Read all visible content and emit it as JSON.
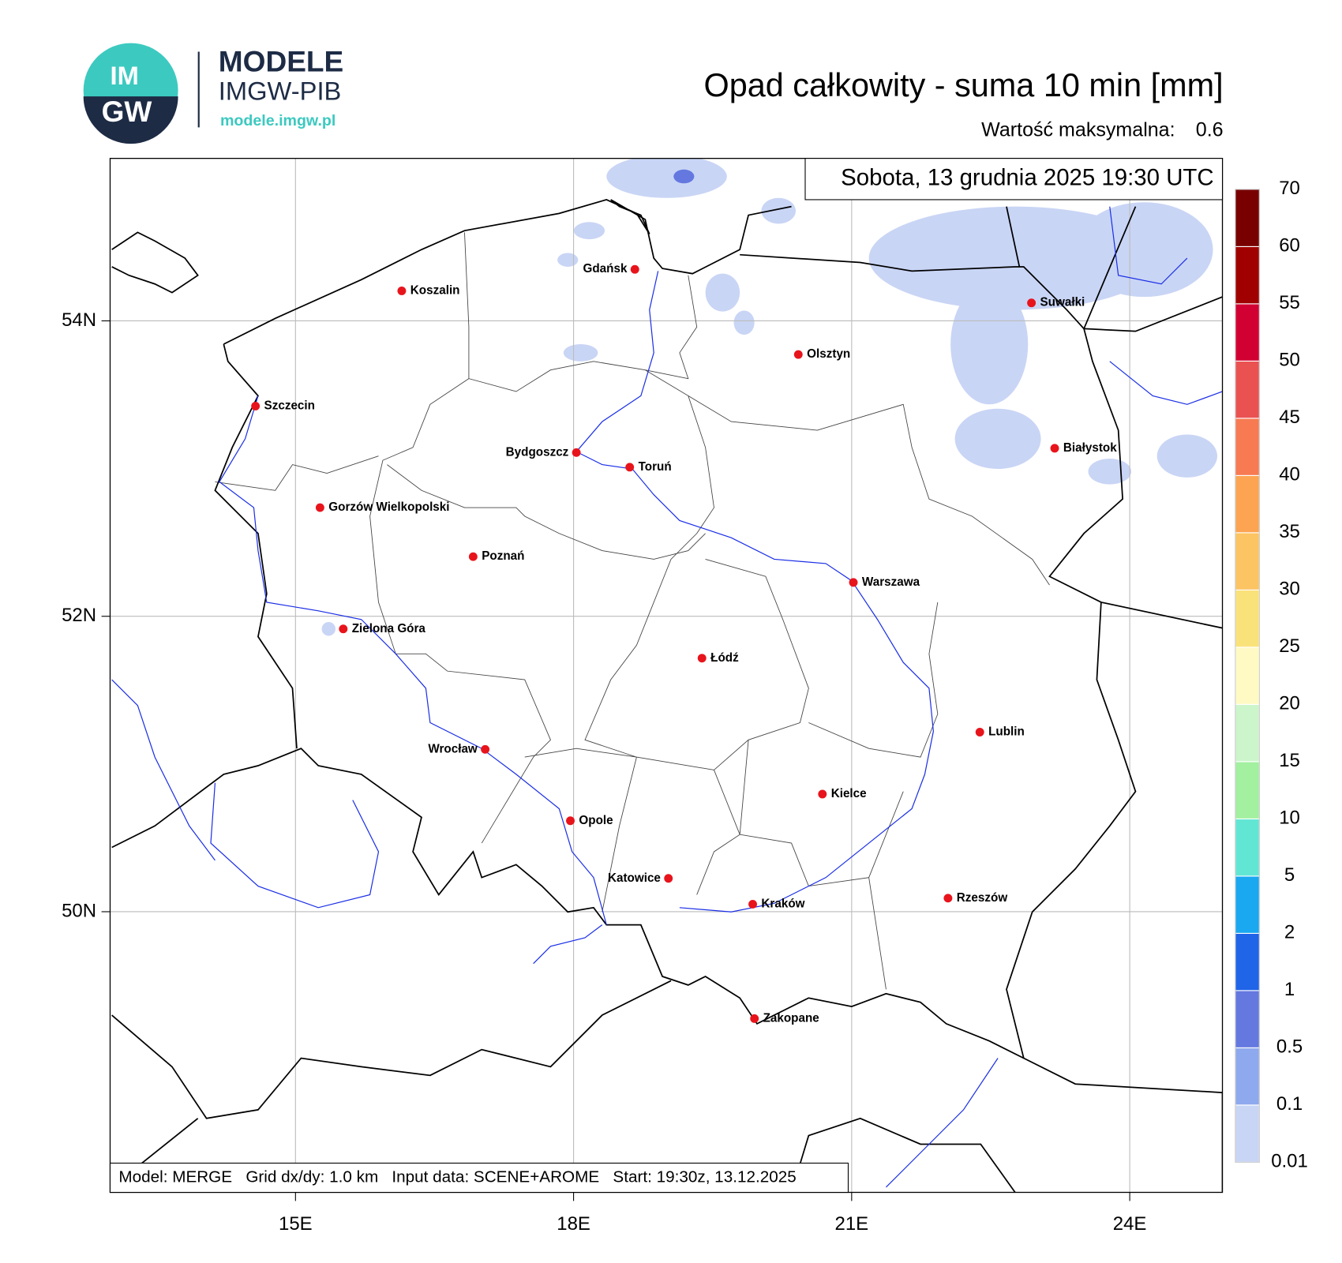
{
  "header": {
    "logo_top": "IM",
    "logo_bottom": "GW",
    "brand": "MODELE",
    "brand_sub": "IMGW-PIB",
    "url": "modele.imgw.pl",
    "title": "Opad całkowity - suma 10 min [mm]",
    "max_label": "Wartość maksymalna:",
    "max_value": 0.6
  },
  "map": {
    "date": "Sobota, 13 grudnia 2025 19:30 UTC",
    "footer": "Model: MERGE   Grid dx/dy: 1.0 km   Input data: SCENE+AROME   Start: 19:30z, 13.12.2025",
    "lonlim": [
      13,
      25
    ],
    "latlim": [
      48.1,
      55.1
    ],
    "xticks": [
      {
        "value": 15,
        "label": "15E"
      },
      {
        "value": 18,
        "label": "18E"
      },
      {
        "value": 21,
        "label": "21E"
      },
      {
        "value": 24,
        "label": "24E"
      }
    ],
    "yticks": [
      {
        "value": 50,
        "label": "50N"
      },
      {
        "value": 52,
        "label": "52N"
      },
      {
        "value": 54,
        "label": "54N"
      }
    ],
    "grid": true,
    "cities": [
      "Gdańsk",
      "Koszalin",
      "Suwałki",
      "Olsztyn",
      "Szczecin",
      "Białystok",
      "Bydgoszcz",
      "Toruń",
      "Gorzów Wielkopolski",
      "Poznań",
      "Warszawa",
      "Zielona Góra",
      "Łódź",
      "Lublin",
      "Wrocław",
      "Kielce",
      "Opole",
      "Katowice",
      "Rzeszów",
      "Kraków",
      "Zakopane"
    ]
  },
  "legend": {
    "levels": [
      0.01,
      0.1,
      0.5,
      1,
      2,
      5,
      10,
      15,
      20,
      25,
      30,
      35,
      40,
      45,
      50,
      55,
      60,
      70
    ],
    "colors": [
      "#c9d5f5",
      "#8fa9ee",
      "#6478e0",
      "#2064e8",
      "#1aa8f0",
      "#62e6d4",
      "#a2f0a0",
      "#ccf5cc",
      "#fffac4",
      "#fae27a",
      "#fcc462",
      "#fca452",
      "#f77a52",
      "#ea5252",
      "#d20032",
      "#a00000",
      "#780000"
    ]
  }
}
